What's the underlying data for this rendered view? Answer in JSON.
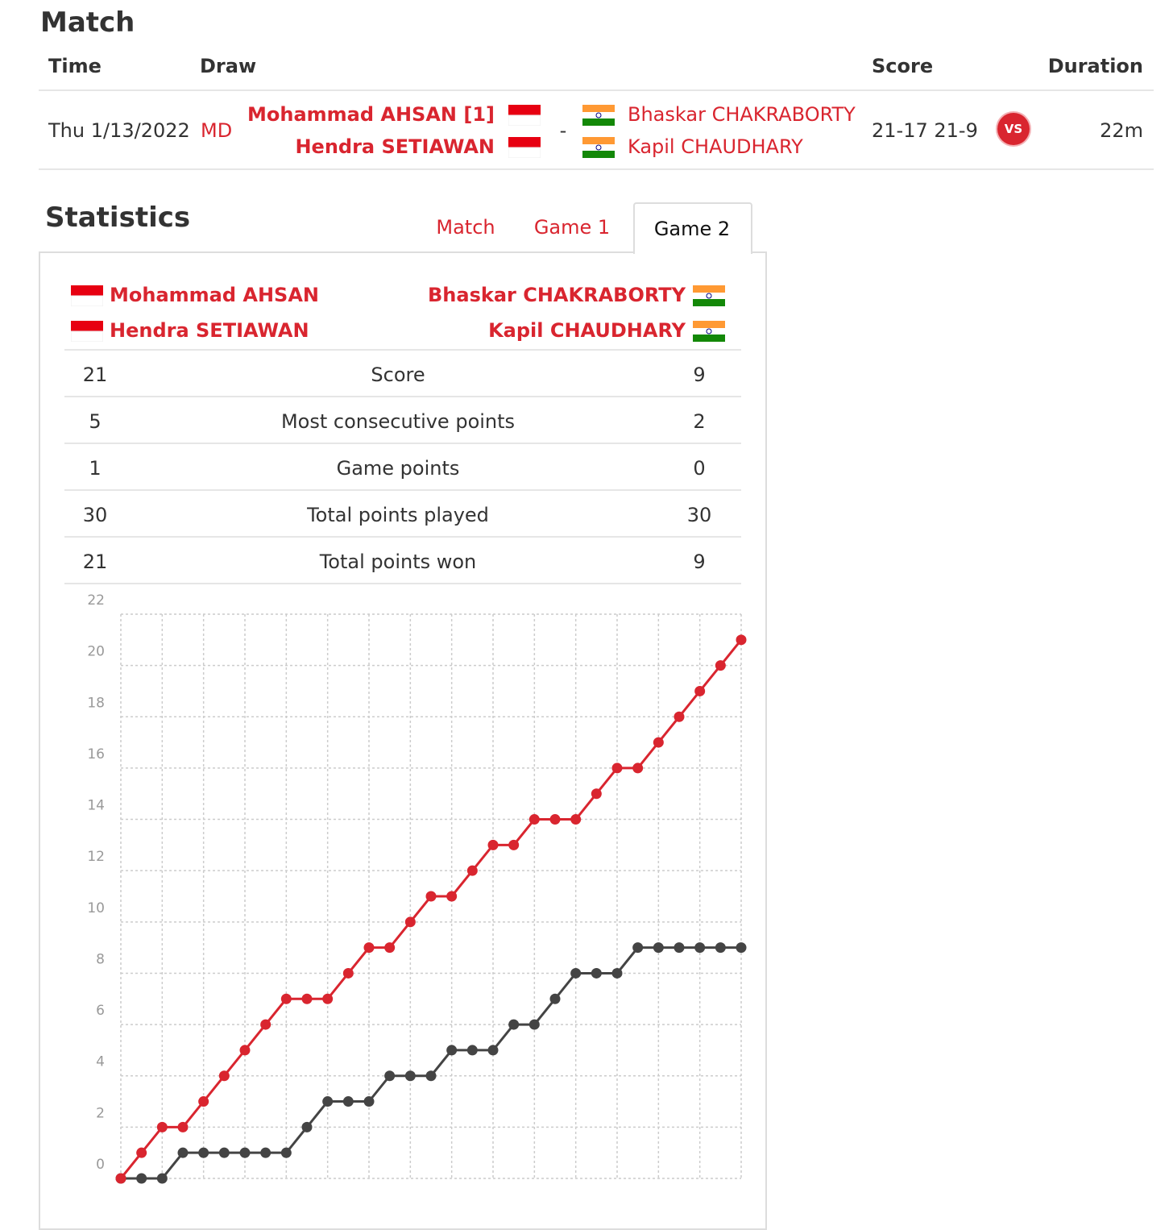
{
  "match": {
    "title": "Match",
    "columns": [
      "Time",
      "Draw",
      "Score",
      "Duration"
    ],
    "row": {
      "time": "Thu 1/13/2022",
      "draw": "MD",
      "team1": [
        "Mohammad AHSAN [1]",
        "Hendra SETIAWAN"
      ],
      "separator": "-",
      "team2": [
        "Bhaskar CHAKRABORTY",
        "Kapil CHAUDHARY"
      ],
      "score": "21-17 21-9",
      "badge": "VS",
      "duration": "22m"
    }
  },
  "statistics": {
    "title": "Statistics",
    "tabs": [
      "Match",
      "Game 1",
      "Game 2"
    ],
    "team1": [
      "Mohammad AHSAN",
      "Hendra SETIAWAN"
    ],
    "team2": [
      "Bhaskar CHAKRABORTY",
      "Kapil CHAUDHARY"
    ],
    "rows": [
      [
        21,
        "Score",
        9
      ],
      [
        5,
        "Most consecutive points",
        2
      ],
      [
        1,
        "Game points",
        0
      ],
      [
        30,
        "Total points played",
        30
      ],
      [
        21,
        "Total points won",
        9
      ]
    ]
  },
  "chart_data": {
    "type": "line",
    "x": [
      0,
      1,
      2,
      3,
      4,
      5,
      6,
      7,
      8,
      9,
      10,
      11,
      12,
      13,
      14,
      15,
      16,
      17,
      18,
      19,
      20,
      21,
      22,
      23,
      24,
      25,
      26,
      27,
      28,
      29,
      30
    ],
    "series": [
      {
        "color": "#444444",
        "values": [
          0,
          0,
          0,
          1,
          1,
          1,
          1,
          1,
          1,
          2,
          3,
          3,
          3,
          4,
          4,
          4,
          5,
          5,
          5,
          6,
          6,
          7,
          8,
          8,
          8,
          9,
          9,
          9,
          9,
          9,
          9
        ]
      },
      {
        "color": "#d9252f",
        "values": [
          0,
          1,
          2,
          2,
          3,
          4,
          5,
          6,
          7,
          7,
          7,
          8,
          9,
          9,
          10,
          11,
          11,
          12,
          13,
          13,
          14,
          14,
          14,
          15,
          16,
          16,
          17,
          18,
          19,
          20,
          21
        ]
      }
    ],
    "xlim": [
      0,
      30
    ],
    "xticks": [
      0,
      2,
      4,
      6,
      8,
      10,
      12,
      14,
      16,
      18,
      20,
      22,
      24,
      26,
      28,
      30
    ],
    "ylim": [
      0,
      22
    ],
    "yticks": [
      0,
      2,
      4,
      6,
      8,
      10,
      12,
      14,
      16,
      18,
      20,
      22
    ],
    "grid": true
  }
}
